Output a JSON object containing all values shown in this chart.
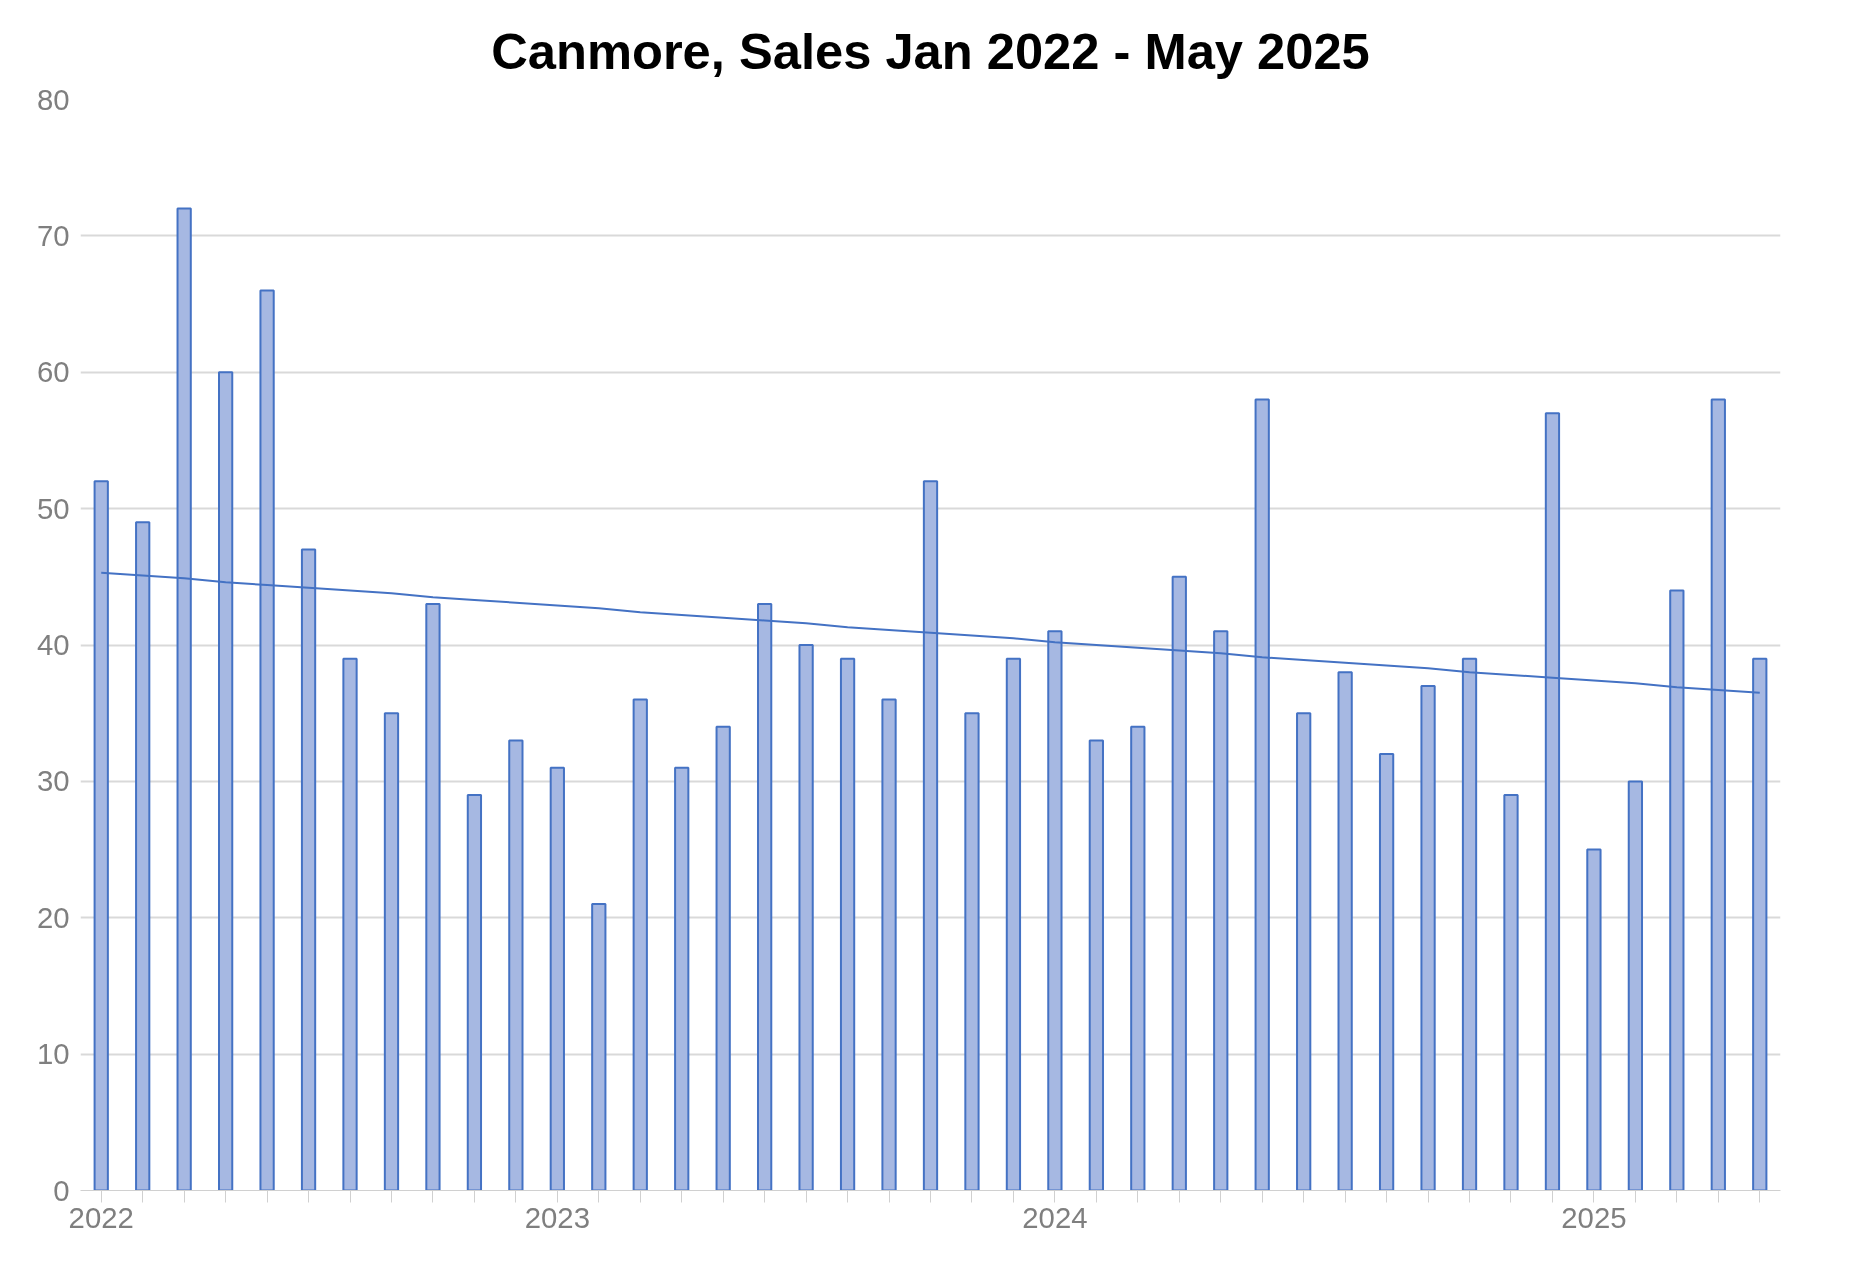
{
  "chart_data": {
    "type": "bar",
    "title": "Canmore, Sales Jan 2022 - May 2025",
    "categories": [
      "2022",
      null,
      null,
      null,
      null,
      null,
      null,
      null,
      null,
      null,
      null,
      "2023",
      null,
      null,
      null,
      null,
      null,
      null,
      null,
      null,
      null,
      null,
      null,
      "2024",
      null,
      null,
      null,
      null,
      null,
      null,
      null,
      null,
      null,
      null,
      null,
      null,
      "2025",
      null,
      null,
      null,
      null
    ],
    "series": [
      {
        "color": "#a6b8e2",
        "values": [
          52,
          49,
          72,
          60,
          66,
          47,
          39,
          35,
          43,
          29,
          33,
          31,
          21,
          36,
          31,
          34,
          43,
          40,
          39,
          36,
          52,
          35,
          39,
          41,
          33,
          34,
          45,
          41,
          58,
          35,
          38,
          32,
          37,
          39,
          29,
          57,
          25,
          30,
          44,
          58,
          39
        ]
      },
      {
        "type": "line",
        "color": "#4472c4",
        "values": [
          45.3,
          45.1,
          44.9,
          44.6,
          44.4,
          44.2,
          44.0,
          43.8,
          43.5,
          43.3,
          43.1,
          42.9,
          42.7,
          42.4,
          42.2,
          42.0,
          41.8,
          41.6,
          41.3,
          41.1,
          40.9,
          40.7,
          40.5,
          40.2,
          40.0,
          39.8,
          39.6,
          39.4,
          39.1,
          38.9,
          38.7,
          38.5,
          38.3,
          38.0,
          37.8,
          37.6,
          37.4,
          37.2,
          36.9,
          36.7,
          36.5
        ]
      }
    ],
    "ylim": [
      0,
      80
    ],
    "yticks": [
      0,
      10,
      20,
      30,
      40,
      50,
      60,
      70,
      80
    ],
    "grid": "y"
  }
}
